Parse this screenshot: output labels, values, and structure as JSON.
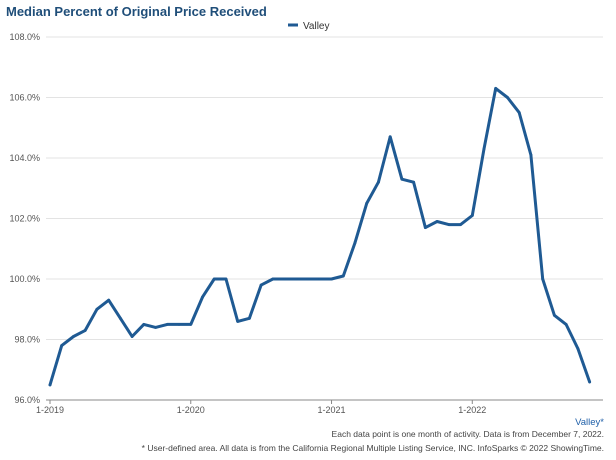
{
  "colors": {
    "series": "#1f5a93",
    "grid": "#e3e3e3",
    "axis": "#888888",
    "title": "#1f4e79"
  },
  "chart_data": {
    "type": "line",
    "title": "Median Percent of Original Price Received",
    "xlabel": "",
    "ylabel": "",
    "ylim": [
      96.0,
      108.0
    ],
    "y_ticks": [
      "96.0%",
      "98.0%",
      "100.0%",
      "102.0%",
      "104.0%",
      "106.0%",
      "108.0%"
    ],
    "x_ticks": [
      "1-2019",
      "1-2020",
      "1-2021",
      "1-2022"
    ],
    "grid": true,
    "legend_position": "top-center",
    "series": [
      {
        "name": "Valley",
        "x": [
          "2019-01",
          "2019-02",
          "2019-03",
          "2019-04",
          "2019-05",
          "2019-06",
          "2019-07",
          "2019-08",
          "2019-09",
          "2019-10",
          "2019-11",
          "2019-12",
          "2020-01",
          "2020-02",
          "2020-03",
          "2020-04",
          "2020-05",
          "2020-06",
          "2020-07",
          "2020-08",
          "2020-09",
          "2020-10",
          "2020-11",
          "2020-12",
          "2021-01",
          "2021-02",
          "2021-03",
          "2021-04",
          "2021-05",
          "2021-06",
          "2021-07",
          "2021-08",
          "2021-09",
          "2021-10",
          "2021-11",
          "2021-12",
          "2022-01",
          "2022-02",
          "2022-03",
          "2022-04",
          "2022-05",
          "2022-06",
          "2022-07",
          "2022-08",
          "2022-09",
          "2022-10",
          "2022-11"
        ],
        "values": [
          96.5,
          97.8,
          98.1,
          98.3,
          99.0,
          99.3,
          98.7,
          98.1,
          98.5,
          98.4,
          98.5,
          98.5,
          98.5,
          99.4,
          100.0,
          100.0,
          98.6,
          98.7,
          99.8,
          100.0,
          100.0,
          100.0,
          100.0,
          100.0,
          100.0,
          100.1,
          101.2,
          102.5,
          103.2,
          104.7,
          103.3,
          103.2,
          101.7,
          101.9,
          101.8,
          101.8,
          102.1,
          104.3,
          106.3,
          106.0,
          105.5,
          104.1,
          100.0,
          98.8,
          98.5,
          97.7,
          96.6
        ]
      }
    ]
  },
  "footer": {
    "area_label": "Valley*",
    "note1": "Each data point is one month of activity. Data is from December 7, 2022.",
    "note2": "* User-defined area. All data is from the California Regional Multiple Listing Service, INC. InfoSparks © 2022 ShowingTime."
  }
}
